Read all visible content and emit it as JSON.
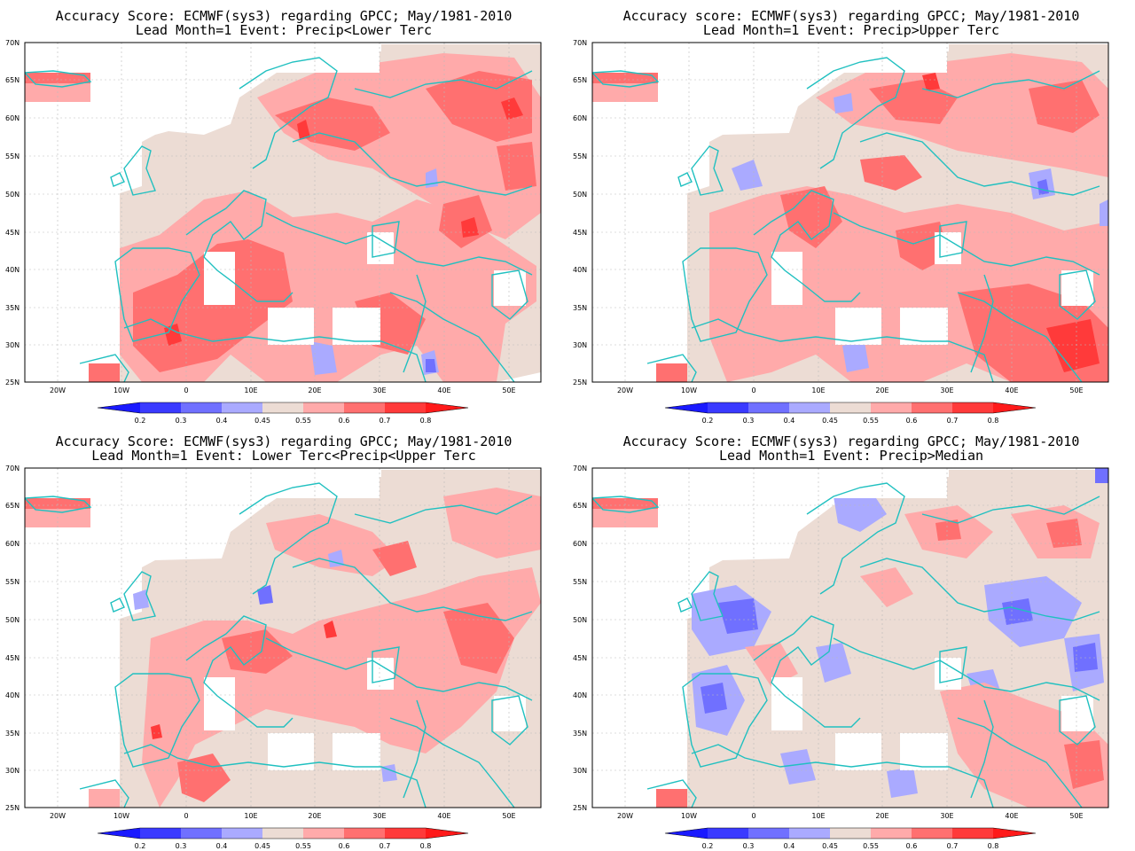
{
  "panels": [
    {
      "title_line1": "Accuracy Score: ECMWF(sys3) regarding GPCC; May/1981-2010",
      "title_line2": "Lead Month=1 Event: Precip<Lower Terc"
    },
    {
      "title_line1": "Accuracy score: ECMWF(sys3) regarding GPCC; May/1981-2010",
      "title_line2": "Lead Month=1 Event: Precip>Upper Terc"
    },
    {
      "title_line1": "Accuracy Score: ECMWF(sys3) regarding GPCC; May/1981-2010",
      "title_line2": "Lead Month=1 Event: Lower Terc<Precip<Upper Terc"
    },
    {
      "title_line1": "Accuracy Score: ECMWF(sys3) regarding GPCC; May/1981-2010",
      "title_line2": "Lead Month=1 Event: Precip>Median"
    }
  ],
  "lat_labels": [
    "70N",
    "65N",
    "60N",
    "55N",
    "50N",
    "45N",
    "40N",
    "35N",
    "30N",
    "25N"
  ],
  "lon_labels": [
    "20W",
    "10W",
    "0",
    "10E",
    "20E",
    "30E",
    "40E",
    "50E"
  ],
  "colorbar": {
    "ticks": [
      "0.2",
      "0.3",
      "0.4",
      "0.45",
      "0.55",
      "0.6",
      "0.7",
      "0.8"
    ],
    "colors": [
      "#1a1aff",
      "#3a3aff",
      "#7070ff",
      "#aaaaff",
      "#ecdcd4",
      "#ffaaaa",
      "#ff7070",
      "#ff3a3a",
      "#ff1a1a"
    ]
  },
  "colors": {
    "coastline": "#20c0c0",
    "grid": "#bbbbbb",
    "missing": "#ffffff"
  }
}
